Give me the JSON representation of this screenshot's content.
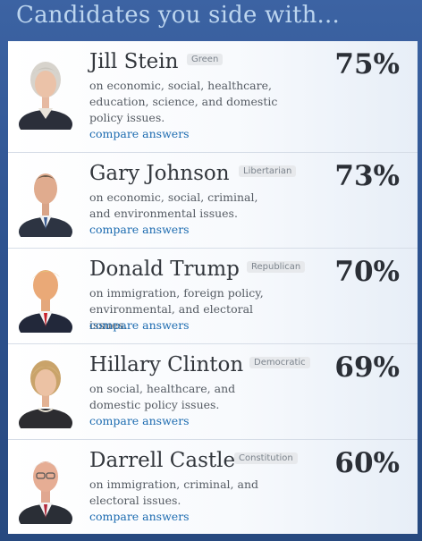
{
  "heading": "Candidates you side with...",
  "candidates": [
    {
      "name": "Jill Stein",
      "party": "Green",
      "percent": "75%",
      "issues": "on economic, social, healthcare, education, science, and domestic policy issues.",
      "compare": "compare answers"
    },
    {
      "name": "Gary Johnson",
      "party": "Libertarian",
      "percent": "73%",
      "issues": "on economic, social, criminal, and environmental issues.",
      "compare": "compare answers"
    },
    {
      "name": "Donald Trump",
      "party": "Republican",
      "percent": "70%",
      "issues": "on immigration, foreign policy, environmental, and electoral issues.",
      "compare": "compare answers"
    },
    {
      "name": "Hillary Clinton",
      "party": "Democratic",
      "percent": "69%",
      "issues": "on social, healthcare, and domestic policy issues.",
      "compare": "compare answers"
    },
    {
      "name": "Darrell Castle",
      "party": "Constitution",
      "percent": "60%",
      "issues": "on immigration, criminal, and electoral issues.",
      "compare": "compare answers"
    }
  ],
  "colors": {
    "header_bg": "#2f5592",
    "heading_text": "#bcd5ef",
    "link": "#1c6bb0",
    "name_text": "#33373d",
    "badge_bg": "#e7e9ec"
  }
}
